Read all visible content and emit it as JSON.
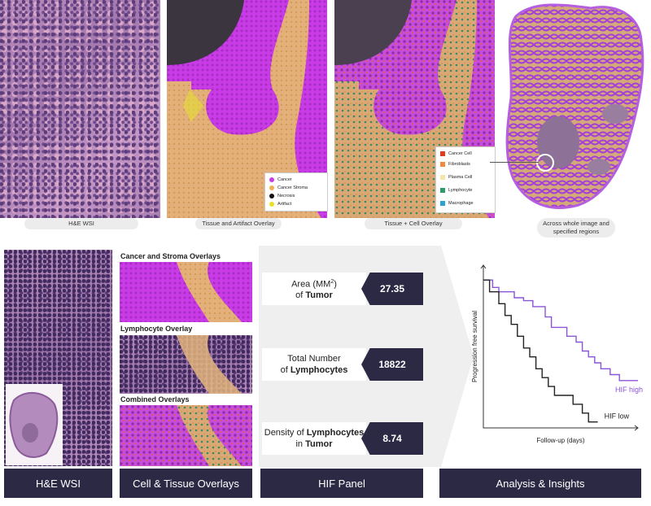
{
  "top_row": {
    "he_caption": "H&E WSI",
    "tissue_caption": "Tissue and Artifact Overlay",
    "cell_caption": "Tissue + Cell Overlay",
    "whole_caption": "Across whole image and specified regions",
    "tissue_legend": [
      {
        "label": "Cancer",
        "color": "#c93be6"
      },
      {
        "label": "Cancer Stroma",
        "color": "#f0b050"
      },
      {
        "label": "Necrosis",
        "color": "#111111"
      },
      {
        "label": "Artifact",
        "color": "#e8e020"
      }
    ],
    "cell_legend": [
      {
        "label": "Cancer Cell",
        "color": "#e63a1e"
      },
      {
        "label": "Fibroblasts",
        "color": "#f08a3c"
      },
      {
        "label": "Plasma Cell",
        "color": "#f3e6a8"
      },
      {
        "label": "Lymphocyte",
        "color": "#2f9a6a"
      },
      {
        "label": "Macrophage",
        "color": "#29a3d8"
      }
    ]
  },
  "overlays": {
    "title1": "Cancer and Stroma Overlays",
    "title2": "Lymphocyte Overlay",
    "title3": "Combined Overlays"
  },
  "hif_panel": {
    "metrics": [
      {
        "label_pre": "Area (MM",
        "label_sup": "2",
        "label_post": ")",
        "label_line2_pre": "of ",
        "label_line2_bold": "Tumor",
        "value": "27.35"
      },
      {
        "label_pre": "Total Number",
        "label_line2_pre": "of ",
        "label_line2_bold": "Lymphocytes",
        "value": "18822"
      },
      {
        "label_pre": "Density of ",
        "label_pre_bold": "Lymphocytes",
        "label_line2_pre": "in ",
        "label_line2_bold": "Tumor",
        "value": "8.74"
      }
    ]
  },
  "chart_data": {
    "type": "line",
    "xlabel": "Follow-up (days)",
    "ylabel": "Progression free survival",
    "series": [
      {
        "name": "HIF high",
        "color": "#8a55d8",
        "x": [
          0,
          6,
          6,
          10,
          10,
          16,
          16,
          20,
          20,
          26,
          26,
          32,
          32,
          40,
          40,
          44,
          44,
          50,
          50,
          54,
          54,
          60,
          60,
          64,
          64,
          68,
          68,
          72,
          72,
          76,
          76,
          82,
          82,
          88,
          88,
          100
        ],
        "y": [
          100,
          100,
          95,
          95,
          92,
          92,
          92,
          92,
          88,
          88,
          86,
          86,
          82,
          82,
          75,
          75,
          68,
          68,
          68,
          68,
          62,
          62,
          58,
          58,
          52,
          52,
          48,
          48,
          44,
          44,
          40,
          40,
          36,
          36,
          32,
          32
        ]
      },
      {
        "name": "HIF low",
        "color": "#222222",
        "x": [
          0,
          4,
          4,
          10,
          10,
          14,
          14,
          18,
          18,
          22,
          22,
          26,
          26,
          30,
          30,
          34,
          34,
          38,
          38,
          42,
          42,
          46,
          46,
          52,
          52,
          58,
          58,
          64,
          64,
          68,
          68,
          74
        ],
        "y": [
          100,
          100,
          92,
          92,
          84,
          84,
          76,
          76,
          70,
          70,
          62,
          62,
          54,
          54,
          48,
          48,
          40,
          40,
          34,
          34,
          28,
          28,
          22,
          22,
          22,
          22,
          16,
          16,
          10,
          10,
          4,
          4
        ]
      }
    ],
    "xlim": [
      0,
      100
    ],
    "ylim": [
      0,
      110
    ]
  },
  "footer": {
    "he": "H&E WSI",
    "overlays": "Cell & Tissue Overlays",
    "hif": "HIF Panel",
    "analysis": "Analysis & Insights"
  }
}
